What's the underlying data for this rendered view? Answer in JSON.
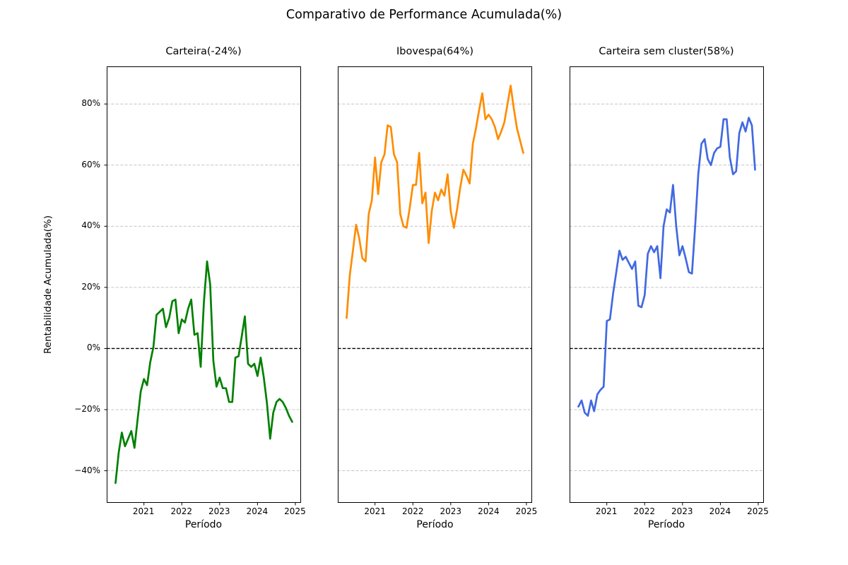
{
  "chart_data": {
    "type": "line",
    "suptitle": "Comparativo de Performance Acumulada(%)",
    "xlabel": "Período",
    "ylabel": "Rentabilidade Acumulada(%)",
    "x_start_month": "2020-04",
    "x_end_month": "2024-12",
    "points_per_series": 57,
    "xtick_labels": [
      "2021",
      "2022",
      "2023",
      "2024",
      "2025"
    ],
    "ytick_values": [
      80,
      60,
      40,
      20,
      0,
      -20,
      -40
    ],
    "ytick_labels": [
      "80%",
      "60%",
      "40%",
      "20%",
      "0%",
      "−20%",
      "−40%"
    ],
    "ylim": [
      -50.5,
      92.3
    ],
    "grid": "dashed-horizontal",
    "zero_line": "black-dashed",
    "legend_position": "none",
    "subplots": [
      {
        "title": "Carteira(-24%)",
        "final_value_pct": -24,
        "color": "#008000",
        "values": [
          -44,
          -34,
          -27.5,
          -32,
          -29.5,
          -27,
          -32.5,
          -23,
          -14,
          -10,
          -12,
          -4.5,
          0.5,
          11,
          12,
          13,
          7,
          10,
          15.5,
          16,
          5,
          9.5,
          8.5,
          13,
          16,
          4.5,
          5,
          -6,
          15,
          28.5,
          21,
          -4,
          -12.5,
          -9.5,
          -13,
          -13,
          -17.5,
          -17.5,
          -3,
          -2.5,
          4,
          10.5,
          -5,
          -6,
          -5,
          -9,
          -3,
          -9.5,
          -18,
          -29.5,
          -21,
          -17.5,
          -16.5,
          -17.5,
          -19.5,
          -22,
          -24
        ]
      },
      {
        "title": "Ibovespa(64%)",
        "final_value_pct": 64,
        "color": "#FF8C00",
        "values": [
          10,
          24,
          32,
          40.5,
          36,
          29.5,
          28.5,
          44,
          48.5,
          62.5,
          50.5,
          61,
          63.5,
          73,
          72.5,
          63.5,
          61,
          44,
          40,
          39.5,
          46,
          53.5,
          53.5,
          64,
          47.5,
          51,
          34.5,
          45,
          51,
          48.5,
          52,
          50,
          57,
          45,
          39.5,
          45.5,
          52.5,
          58.5,
          56.5,
          54,
          67,
          72,
          78,
          83.5,
          75,
          76.5,
          75,
          72.5,
          68.5,
          71,
          74,
          80,
          86,
          78.5,
          72,
          68,
          64
        ]
      },
      {
        "title": "Carteira sem cluster(58%)",
        "final_value_pct": 58,
        "color": "#4169E1",
        "values": [
          -19,
          -17,
          -21,
          -22,
          -17,
          -20.5,
          -15,
          -13.5,
          -12.5,
          9,
          9.5,
          18,
          25,
          32,
          29,
          30,
          28,
          26,
          28.5,
          14,
          13.5,
          17.5,
          31,
          33.5,
          31.5,
          33.5,
          23,
          40,
          45.5,
          44.5,
          53.5,
          40,
          30.5,
          33.5,
          29.5,
          25,
          24.5,
          40,
          57,
          67,
          68.5,
          62,
          60,
          64,
          65.5,
          66,
          75,
          75,
          62.5,
          57,
          58,
          70.5,
          74,
          71,
          75.5,
          73,
          58.5
        ]
      }
    ]
  }
}
